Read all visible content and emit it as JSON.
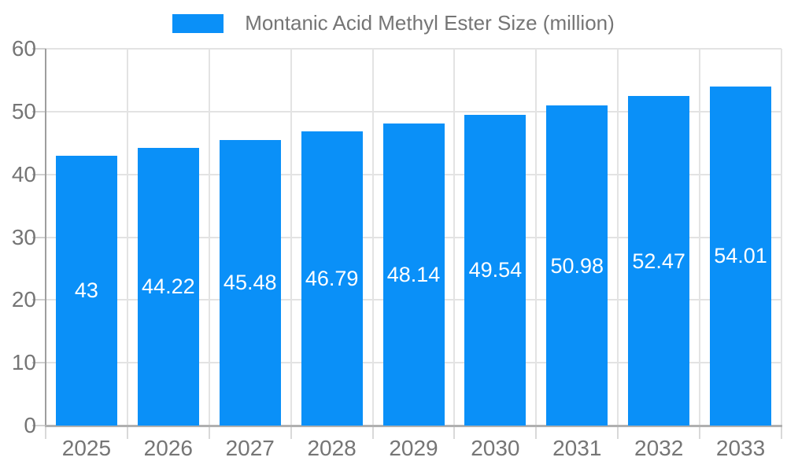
{
  "legend": {
    "label": "Montanic Acid Methyl Ester Size (million)"
  },
  "chart_data": {
    "type": "bar",
    "title": "Montanic Acid Methyl Ester Size (million)",
    "categories": [
      "2025",
      "2026",
      "2027",
      "2028",
      "2029",
      "2030",
      "2031",
      "2032",
      "2033"
    ],
    "values": [
      43,
      44.22,
      45.48,
      46.79,
      48.14,
      49.54,
      50.98,
      52.47,
      54.01
    ],
    "value_labels": [
      "43",
      "44.22",
      "45.48",
      "46.79",
      "48.14",
      "49.54",
      "50.98",
      "52.47",
      "54.01"
    ],
    "xlabel": "",
    "ylabel": "",
    "ylim": [
      0,
      60
    ],
    "y_ticks": [
      0,
      10,
      20,
      30,
      40,
      50,
      60
    ],
    "grid": true,
    "legend_position": "top",
    "bar_color": "#0a90f8",
    "value_label_color": "#ffffff",
    "tick_label_color": "#757575"
  }
}
